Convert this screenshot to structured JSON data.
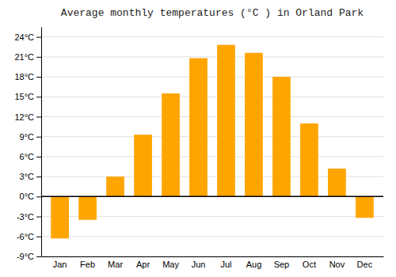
{
  "chart_data": {
    "type": "bar",
    "title": "Average monthly temperatures (°C ) in Orland Park",
    "categories": [
      "Jan",
      "Feb",
      "Mar",
      "Apr",
      "May",
      "Jun",
      "Jul",
      "Aug",
      "Sep",
      "Oct",
      "Nov",
      "Dec"
    ],
    "values": [
      -6.3,
      -3.5,
      3.0,
      9.3,
      15.5,
      20.8,
      22.8,
      21.6,
      18.0,
      11.0,
      4.2,
      -3.2
    ],
    "color": "#FFA500",
    "ylim": [
      -9,
      25.5
    ],
    "yticks": [
      {
        "value": -9,
        "label": "-9°C"
      },
      {
        "value": -6,
        "label": "-6°C"
      },
      {
        "value": -3,
        "label": "-3°C"
      },
      {
        "value": 0,
        "label": "0°C"
      },
      {
        "value": 3,
        "label": "3°C"
      },
      {
        "value": 6,
        "label": "6°C"
      },
      {
        "value": 9,
        "label": "9°C"
      },
      {
        "value": 12,
        "label": "12°C"
      },
      {
        "value": 15,
        "label": "15°C"
      },
      {
        "value": 18,
        "label": "18°C"
      },
      {
        "value": 21,
        "label": "21°C"
      },
      {
        "value": 24,
        "label": "24°C"
      }
    ],
    "grid": true
  }
}
